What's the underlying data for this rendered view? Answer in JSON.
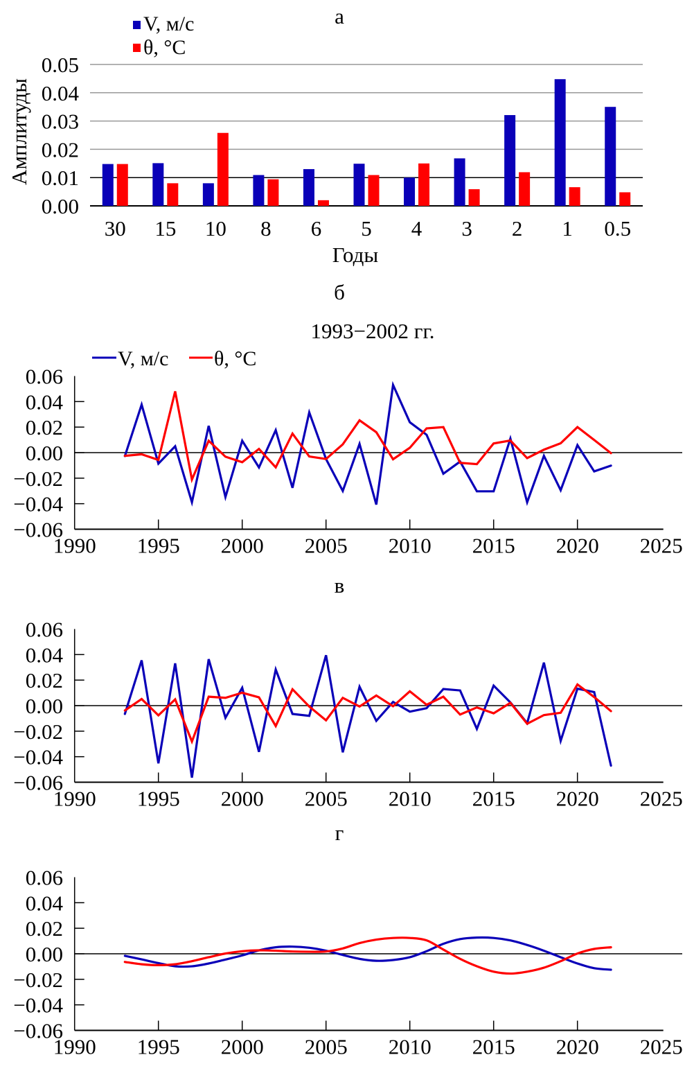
{
  "colors": {
    "v": "#0a00b8",
    "theta": "#ff0000",
    "grid": "#999999",
    "axis": "#000000"
  },
  "chart_data": [
    {
      "type": "bar",
      "panel_label": "а",
      "title": "",
      "xlabel": "Годы",
      "ylabel": "Амплитуды",
      "ylim": [
        0,
        0.05
      ],
      "yticks": [
        "0.00",
        "0.01",
        "0.02",
        "0.03",
        "0.04",
        "0.05"
      ],
      "grid": true,
      "legend_position": "top-left",
      "categories": [
        "30",
        "15",
        "10",
        "8",
        "6",
        "5",
        "4",
        "3",
        "2",
        "1",
        "0.5"
      ],
      "series": [
        {
          "name": "V, м/с",
          "color_key": "v",
          "values": [
            0.0148,
            0.0151,
            0.008,
            0.0109,
            0.013,
            0.0149,
            0.01,
            0.0168,
            0.0321,
            0.0448,
            0.035
          ]
        },
        {
          "name": "θ, °C",
          "color_key": "theta",
          "values": [
            0.0148,
            0.008,
            0.0258,
            0.0094,
            0.002,
            0.0109,
            0.015,
            0.0059,
            0.0119,
            0.0066,
            0.0048
          ]
        }
      ]
    },
    {
      "type": "line",
      "panel_label": "б",
      "title": "1993−2002 гг.",
      "xlabel": "",
      "ylabel": "",
      "xlim": [
        1990,
        2025
      ],
      "ylim": [
        -0.06,
        0.06
      ],
      "xticks": [
        "1990",
        "1995",
        "2000",
        "2005",
        "2010",
        "2015",
        "2020",
        "2025"
      ],
      "yticks": [
        "0.06",
        "0.04",
        "0.02",
        "0.00",
        "−0.02",
        "−0.04",
        "−0.06"
      ],
      "grid": false,
      "legend_position": "top-left",
      "x": [
        1993,
        1994,
        1995,
        1996,
        1997,
        1998,
        1999,
        2000,
        2001,
        2002,
        2003,
        2004,
        2005,
        2006,
        2007,
        2008,
        2009,
        2010,
        2011,
        2012,
        2013,
        2014,
        2015,
        2016,
        2017,
        2018,
        2019,
        2020,
        2021,
        2022
      ],
      "series": [
        {
          "name": "V, м/с",
          "color_key": "v",
          "values": [
            -0.0027,
            0.0376,
            -0.0086,
            0.005,
            -0.0389,
            0.021,
            -0.0348,
            0.0093,
            -0.0116,
            0.0176,
            -0.0276,
            0.0315,
            -0.005,
            -0.03,
            0.0068,
            -0.0407,
            0.053,
            0.0238,
            0.014,
            -0.0165,
            -0.007,
            -0.0303,
            -0.0303,
            0.011,
            -0.0389,
            -0.0025,
            -0.0294,
            0.0059,
            -0.0147,
            -0.0102
          ]
        },
        {
          "name": "θ, °C",
          "color_key": "theta",
          "values": [
            -0.0025,
            -0.0013,
            -0.0057,
            0.048,
            -0.0211,
            0.0093,
            -0.0032,
            -0.0075,
            0.0029,
            -0.0115,
            0.0149,
            -0.003,
            -0.005,
            0.0065,
            0.0253,
            0.016,
            -0.0052,
            0.0038,
            0.019,
            0.02,
            -0.008,
            -0.009,
            0.0072,
            0.0095,
            -0.0043,
            0.0023,
            0.0073,
            0.02,
            0.0099,
            -0.0004
          ]
        }
      ]
    },
    {
      "type": "line",
      "panel_label": "в",
      "title": "",
      "xlabel": "",
      "ylabel": "",
      "xlim": [
        1990,
        2025
      ],
      "ylim": [
        -0.06,
        0.06
      ],
      "xticks": [
        "1990",
        "1995",
        "2000",
        "2005",
        "2010",
        "2015",
        "2020",
        "2025"
      ],
      "yticks": [
        "0.06",
        "0.04",
        "0.02",
        "0.00",
        "−0.02",
        "−0.04",
        "−0.06"
      ],
      "grid": false,
      "x": [
        1993,
        1994,
        1995,
        1996,
        1997,
        1998,
        1999,
        2000,
        2001,
        2002,
        2003,
        2004,
        2005,
        2006,
        2007,
        2008,
        2009,
        2010,
        2011,
        2012,
        2013,
        2014,
        2015,
        2016,
        2017,
        2018,
        2019,
        2020,
        2021,
        2022
      ],
      "series": [
        {
          "name": "V, м/с",
          "color_key": "v",
          "values": [
            -0.0065,
            0.0355,
            -0.0452,
            0.0331,
            -0.0564,
            0.0364,
            -0.0095,
            0.014,
            -0.0362,
            0.0283,
            -0.0065,
            -0.008,
            0.0395,
            -0.0366,
            0.0148,
            -0.0119,
            0.0029,
            -0.0047,
            -0.002,
            0.013,
            0.0119,
            -0.0182,
            0.0157,
            0.0025,
            -0.0137,
            0.0337,
            -0.0276,
            0.0133,
            0.0106,
            -0.047
          ]
        },
        {
          "name": "θ, °C",
          "color_key": "theta",
          "values": [
            -0.0038,
            0.0052,
            -0.0076,
            0.0049,
            -0.0281,
            0.007,
            0.0061,
            0.0101,
            0.0065,
            -0.016,
            0.0128,
            -0.0007,
            -0.0115,
            0.0061,
            -0.0007,
            0.0079,
            -0.0005,
            0.0112,
            0.0007,
            0.007,
            -0.007,
            -0.0014,
            -0.006,
            0.0022,
            -0.0142,
            -0.0074,
            -0.0056,
            0.0166,
            0.0067,
            -0.0043
          ]
        }
      ]
    },
    {
      "type": "line",
      "panel_label": "г",
      "title": "",
      "xlabel": "",
      "ylabel": "",
      "xlim": [
        1990,
        2025
      ],
      "ylim": [
        -0.06,
        0.06
      ],
      "xticks": [
        "1990",
        "1995",
        "2000",
        "2005",
        "2010",
        "2015",
        "2020",
        "2025"
      ],
      "yticks": [
        "0.06",
        "0.04",
        "0.02",
        "0.00",
        "−0.02",
        "−0.04",
        "−0.06"
      ],
      "grid": false,
      "smooth": true,
      "x": [
        1993,
        1994,
        1995,
        1996,
        1997,
        1998,
        1999,
        2000,
        2001,
        2002,
        2003,
        2004,
        2005,
        2006,
        2007,
        2008,
        2009,
        2010,
        2011,
        2012,
        2013,
        2014,
        2015,
        2016,
        2017,
        2018,
        2019,
        2020,
        2021,
        2022
      ],
      "series": [
        {
          "name": "V, м/с",
          "color_key": "v",
          "values": [
            -0.0016,
            -0.0044,
            -0.0073,
            -0.0098,
            -0.0098,
            -0.0076,
            -0.0045,
            -0.0013,
            0.0027,
            0.0051,
            0.0056,
            0.0047,
            0.0024,
            -0.0009,
            -0.004,
            -0.0055,
            -0.0049,
            -0.0027,
            0.002,
            0.0078,
            0.0115,
            0.0127,
            0.0124,
            0.0105,
            0.0069,
            0.0024,
            -0.0027,
            -0.0076,
            -0.0113,
            -0.0125
          ]
        },
        {
          "name": "θ, °C",
          "color_key": "theta",
          "values": [
            -0.0064,
            -0.0082,
            -0.0089,
            -0.0082,
            -0.0058,
            -0.0027,
            0.0002,
            0.002,
            0.0027,
            0.0024,
            0.0018,
            0.0016,
            0.0018,
            0.0042,
            0.0084,
            0.0111,
            0.0124,
            0.0124,
            0.0105,
            0.0033,
            -0.004,
            -0.0098,
            -0.014,
            -0.0155,
            -0.014,
            -0.0109,
            -0.0058,
            0.0002,
            0.0038,
            0.0051
          ]
        }
      ]
    }
  ]
}
